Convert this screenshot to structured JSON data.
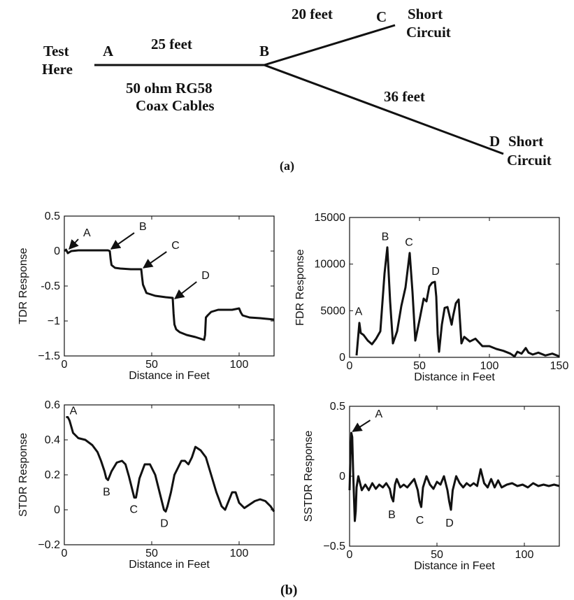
{
  "figure": {
    "diagram_caption": "(a)",
    "plots_caption": "(b)"
  },
  "diagram": {
    "labels": {
      "test_here": [
        "Test",
        "Here"
      ],
      "point_a": "A",
      "point_b": "B",
      "point_c": "C",
      "point_d": "D",
      "length_ab": "25 feet",
      "length_bc": "20 feet",
      "length_bd": "36 feet",
      "cable_type": [
        "50 ohm RG58",
        "Coax Cables"
      ],
      "end_c": [
        "Short",
        "Circuit"
      ],
      "end_d": [
        "Short",
        "Circuit"
      ]
    }
  },
  "chart_data": [
    {
      "id": "tdr",
      "type": "line",
      "xlabel": "Distance in Feet",
      "ylabel": "TDR Response",
      "xlim": [
        0,
        120
      ],
      "ylim": [
        -1.5,
        0.5
      ],
      "xticks": [
        0,
        50,
        100
      ],
      "yticks": [
        0.5,
        0,
        -0.5,
        -1,
        -1.5
      ],
      "ytick_labels": [
        "0.5",
        "0",
        "-0.5",
        "−1",
        "−1.5"
      ],
      "x": [
        0,
        1,
        2,
        4,
        8,
        15,
        20,
        25,
        26,
        26.5,
        27,
        29,
        32,
        38,
        44,
        44.5,
        45,
        47,
        52,
        58,
        62,
        62.5,
        63,
        64,
        66,
        70,
        75,
        80,
        80.5,
        81,
        82,
        84,
        88,
        92,
        96,
        100,
        101,
        102,
        106,
        112,
        120
      ],
      "y": [
        0,
        0.02,
        -0.03,
        0.0,
        0.01,
        0.01,
        0.01,
        0.01,
        0.0,
        -0.12,
        -0.2,
        -0.24,
        -0.25,
        -0.26,
        -0.26,
        -0.38,
        -0.48,
        -0.6,
        -0.64,
        -0.66,
        -0.67,
        -0.9,
        -1.05,
        -1.12,
        -1.16,
        -1.2,
        -1.23,
        -1.27,
        -1.2,
        -0.95,
        -0.92,
        -0.87,
        -0.84,
        -0.84,
        -0.84,
        -0.82,
        -0.88,
        -0.92,
        -0.95,
        -0.96,
        -0.98
      ],
      "annotations": [
        {
          "label": "A",
          "x": 2,
          "y": 0.01,
          "arrow": true
        },
        {
          "label": "B",
          "x": 26,
          "y": 0.01,
          "arrow": true
        },
        {
          "label": "C",
          "x": 44.5,
          "y": -0.26,
          "arrow": true
        },
        {
          "label": "D",
          "x": 62.5,
          "y": -0.7,
          "arrow": true
        }
      ]
    },
    {
      "id": "fdr",
      "type": "line",
      "xlabel": "Distance in Feet",
      "ylabel": "FDR Response",
      "xlim": [
        0,
        150
      ],
      "ylim": [
        0,
        15000
      ],
      "xticks": [
        0,
        50,
        100,
        150
      ],
      "yticks": [
        0,
        5000,
        10000,
        15000
      ],
      "x": [
        5,
        7,
        8,
        10,
        13,
        16,
        19,
        22,
        25,
        27,
        29,
        31,
        34,
        37,
        40,
        43,
        45,
        47,
        50,
        53,
        55,
        57,
        59,
        61,
        62,
        63,
        64,
        66,
        68,
        70,
        73,
        74,
        76,
        78,
        80,
        82,
        86,
        90,
        95,
        100,
        105,
        110,
        115,
        118,
        120,
        123,
        126,
        128,
        131,
        135,
        140,
        145,
        150
      ],
      "y": [
        200,
        3700,
        2600,
        2400,
        1800,
        1400,
        2000,
        2800,
        9000,
        11800,
        6000,
        1500,
        2800,
        5500,
        7500,
        11200,
        7000,
        1800,
        4000,
        6300,
        6000,
        7600,
        8000,
        8100,
        6500,
        2500,
        600,
        3500,
        5300,
        5400,
        3500,
        4400,
        5800,
        6200,
        1500,
        2200,
        1700,
        2000,
        1200,
        1200,
        900,
        700,
        400,
        100,
        600,
        400,
        1000,
        500,
        300,
        500,
        200,
        400,
        100
      ],
      "annotations": [
        {
          "label": "A",
          "x": 7,
          "y": 3700,
          "arrow": false
        },
        {
          "label": "B",
          "x": 27,
          "y": 11800,
          "arrow": false
        },
        {
          "label": "C",
          "x": 43,
          "y": 11200,
          "arrow": false
        },
        {
          "label": "D",
          "x": 62,
          "y": 8100,
          "arrow": false
        }
      ]
    },
    {
      "id": "stdr",
      "type": "line",
      "xlabel": "Distance in Feet",
      "ylabel": "STDR Response",
      "xlim": [
        0,
        120
      ],
      "ylim": [
        -0.2,
        0.6
      ],
      "xticks": [
        0,
        50,
        100
      ],
      "yticks": [
        0.6,
        0.4,
        0.2,
        0,
        -0.2
      ],
      "ytick_labels": [
        "0.6",
        "0.4",
        "0.2",
        "0",
        "−0.2"
      ],
      "x": [
        1,
        2,
        3,
        5,
        8,
        12,
        16,
        19,
        21,
        23,
        24,
        25,
        27,
        30,
        33,
        35,
        37,
        39,
        40,
        41,
        43,
        46,
        49,
        52,
        54,
        56,
        57,
        58,
        59,
        61,
        63,
        65,
        67,
        69,
        71,
        73,
        75,
        78,
        81,
        84,
        87,
        90,
        92,
        94,
        96,
        98,
        100,
        103,
        106,
        109,
        112,
        115,
        118,
        120
      ],
      "y": [
        0.53,
        0.53,
        0.51,
        0.44,
        0.41,
        0.4,
        0.37,
        0.33,
        0.28,
        0.22,
        0.18,
        0.17,
        0.22,
        0.27,
        0.28,
        0.26,
        0.19,
        0.11,
        0.07,
        0.07,
        0.18,
        0.26,
        0.26,
        0.2,
        0.12,
        0.04,
        0.0,
        -0.01,
        0.02,
        0.1,
        0.2,
        0.24,
        0.28,
        0.28,
        0.26,
        0.3,
        0.36,
        0.34,
        0.3,
        0.2,
        0.1,
        0.02,
        0.0,
        0.05,
        0.1,
        0.1,
        0.04,
        0.01,
        0.03,
        0.05,
        0.06,
        0.05,
        0.02,
        -0.01
      ],
      "annotations": [
        {
          "label": "A",
          "x": 2,
          "y": 0.53,
          "arrow": false
        },
        {
          "label": "B",
          "x": 25,
          "y": 0.17,
          "arrow": false
        },
        {
          "label": "C",
          "x": 40.5,
          "y": 0.07,
          "arrow": false
        },
        {
          "label": "D",
          "x": 58,
          "y": -0.01,
          "arrow": false
        }
      ]
    },
    {
      "id": "sstdr",
      "type": "line",
      "xlabel": "Distance in Feet",
      "ylabel": "SSTDR Response",
      "xlim": [
        0,
        120
      ],
      "ylim": [
        -0.5,
        0.5
      ],
      "xticks": [
        0,
        50,
        100
      ],
      "yticks": [
        0.5,
        0,
        -0.5
      ],
      "ytick_labels": [
        "0.5",
        "0",
        "−0.5"
      ],
      "x": [
        0,
        0.5,
        1,
        1.5,
        2,
        2.5,
        3,
        3.5,
        4,
        5,
        6,
        7,
        9,
        11,
        13,
        15,
        17,
        19,
        21,
        23,
        24,
        25,
        26,
        27,
        29,
        31,
        33,
        35,
        37,
        39,
        40,
        41,
        42,
        44,
        46,
        48,
        50,
        52,
        54,
        56,
        57,
        58,
        59,
        61,
        63,
        65,
        67,
        69,
        71,
        73,
        75,
        77,
        79,
        81,
        83,
        85,
        87,
        90,
        93,
        96,
        99,
        102,
        105,
        108,
        111,
        114,
        117,
        120
      ],
      "y": [
        -0.1,
        0.15,
        0.31,
        0.28,
        0.05,
        -0.15,
        -0.32,
        -0.25,
        -0.08,
        0.0,
        -0.05,
        -0.1,
        -0.06,
        -0.1,
        -0.05,
        -0.09,
        -0.06,
        -0.08,
        -0.05,
        -0.09,
        -0.15,
        -0.18,
        -0.06,
        -0.02,
        -0.08,
        -0.06,
        -0.08,
        -0.05,
        -0.02,
        -0.1,
        -0.18,
        -0.22,
        -0.08,
        0.0,
        -0.06,
        -0.09,
        -0.04,
        -0.06,
        0.0,
        -0.1,
        -0.18,
        -0.24,
        -0.1,
        0.0,
        -0.05,
        -0.08,
        -0.05,
        -0.07,
        -0.05,
        -0.07,
        0.05,
        -0.05,
        -0.08,
        -0.02,
        -0.08,
        -0.03,
        -0.08,
        -0.06,
        -0.05,
        -0.07,
        -0.06,
        -0.08,
        -0.05,
        -0.07,
        -0.06,
        -0.07,
        -0.06,
        -0.07
      ],
      "annotations": [
        {
          "label": "A",
          "x": 1,
          "y": 0.31,
          "arrow": true
        },
        {
          "label": "B",
          "x": 25,
          "y": -0.18,
          "arrow": false
        },
        {
          "label": "C",
          "x": 41,
          "y": -0.22,
          "arrow": false
        },
        {
          "label": "D",
          "x": 58,
          "y": -0.24,
          "arrow": false
        }
      ]
    }
  ]
}
